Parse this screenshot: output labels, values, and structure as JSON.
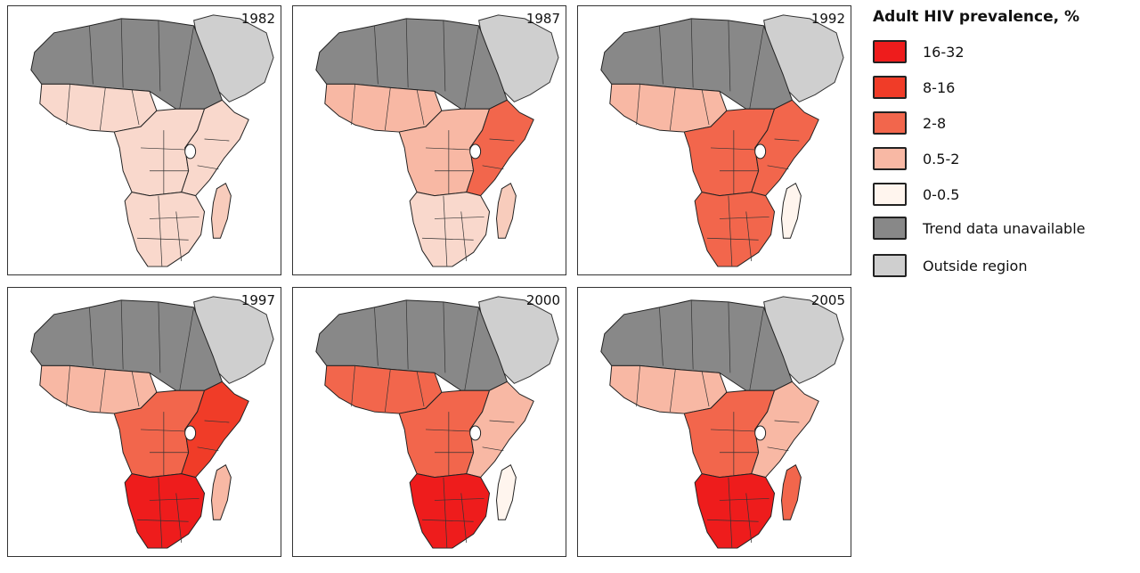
{
  "legend": {
    "title": "Adult HIV prevalence, %",
    "items": [
      {
        "label": "16-32",
        "color": "#ee1c1c"
      },
      {
        "label": "8-16",
        "color": "#f03c28"
      },
      {
        "label": "2-8",
        "color": "#f2664c"
      },
      {
        "label": "0.5-2",
        "color": "#f8b8a4"
      },
      {
        "label": "0-0.5",
        "color": "#fff5ee"
      },
      {
        "label": "Trend data unavailable",
        "color": "#888888"
      },
      {
        "label": "Outside region",
        "color": "#cfcfcf"
      }
    ]
  },
  "maps": [
    {
      "year": "1982",
      "north": "#888888",
      "west": "#f9d8cc",
      "central": "#f9d8cc",
      "east": "#f9d8cc",
      "south": "#f9d8cc",
      "madagascar": "#f8ccbc"
    },
    {
      "year": "1987",
      "north": "#888888",
      "west": "#f8b8a4",
      "central": "#f8b8a4",
      "east": "#f2664c",
      "south": "#f9d8cc",
      "madagascar": "#f8ccbc"
    },
    {
      "year": "1992",
      "north": "#888888",
      "west": "#f8b8a4",
      "central": "#f2664c",
      "east": "#f2664c",
      "south": "#f2664c",
      "madagascar": "#fff5ee"
    },
    {
      "year": "1997",
      "north": "#888888",
      "west": "#f8b8a4",
      "central": "#f2664c",
      "east": "#f03c28",
      "south": "#ee1c1c",
      "madagascar": "#f8b8a4"
    },
    {
      "year": "2000",
      "north": "#888888",
      "west": "#f2664c",
      "central": "#f2664c",
      "east": "#f8b8a4",
      "south": "#ee1c1c",
      "madagascar": "#fff5ee"
    },
    {
      "year": "2005",
      "north": "#888888",
      "west": "#f8b8a4",
      "central": "#f2664c",
      "east": "#f8b8a4",
      "south": "#ee1c1c",
      "madagascar": "#f2664c"
    }
  ]
}
